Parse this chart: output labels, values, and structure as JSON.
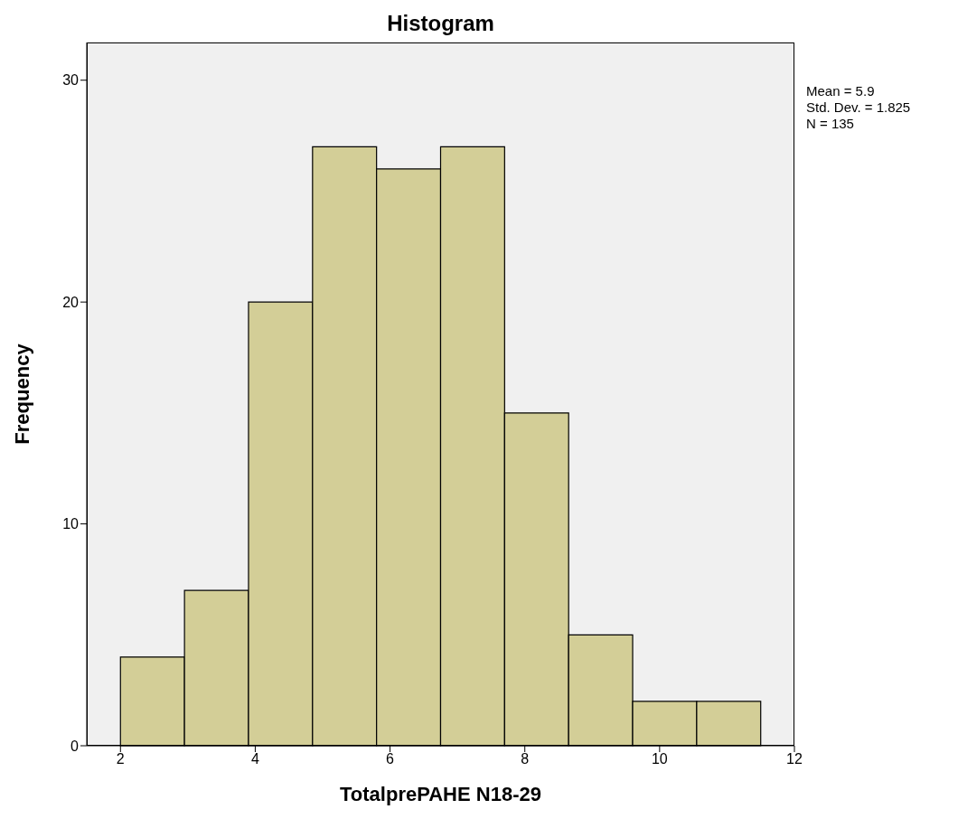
{
  "chart_data": {
    "type": "histogram",
    "title": "Histogram",
    "xlabel": "TotalprePAHE N18-29",
    "ylabel": "Frequency",
    "bins": [
      2,
      2.95,
      3.9,
      4.85,
      5.8,
      6.75,
      7.7,
      8.65,
      9.6,
      10.55,
      11.5
    ],
    "values": [
      4,
      7,
      20,
      27,
      26,
      27,
      15,
      5,
      2,
      2
    ],
    "color": "#d3ce97",
    "xlim": [
      1.5,
      12
    ],
    "xticks": [
      2,
      4,
      6,
      8,
      10,
      12
    ],
    "ylim": [
      0,
      31.7
    ],
    "yticks": [
      0,
      10,
      20,
      30
    ],
    "grid": false,
    "annotations": [
      "Mean = 5.9",
      "Std. Dev. = 1.825",
      "N = 135"
    ]
  }
}
